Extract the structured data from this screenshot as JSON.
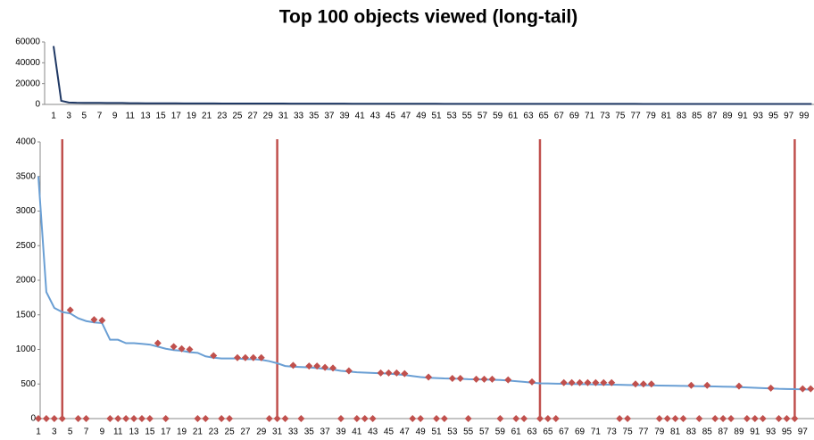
{
  "chart_data": [
    {
      "type": "line",
      "title": "Top 100 objects viewed (long-tail)",
      "categories": [
        "1",
        null,
        "3",
        null,
        "5",
        null,
        "7",
        null,
        "9",
        null,
        "11",
        null,
        "13",
        null,
        "15",
        null,
        "17",
        null,
        "19",
        null,
        "21",
        null,
        "23",
        null,
        "25",
        null,
        "27",
        null,
        "29",
        null,
        "31",
        null,
        "33",
        null,
        "35",
        null,
        "37",
        null,
        "39",
        null,
        "41",
        null,
        "43",
        null,
        "45",
        null,
        "47",
        null,
        "49",
        null,
        "51",
        null,
        "53",
        null,
        "55",
        null,
        "57",
        null,
        "59",
        null,
        "61",
        null,
        "63",
        null,
        "65",
        null,
        "67",
        null,
        "69",
        null,
        "71",
        null,
        "73",
        null,
        "75",
        null,
        "77",
        null,
        "79",
        null,
        "81",
        null,
        "83",
        null,
        "85",
        null,
        "87",
        null,
        "89",
        null,
        "91",
        null,
        "93",
        null,
        "95",
        null,
        "97",
        null,
        "99",
        null
      ],
      "series": [
        {
          "color": "#1f3864",
          "style": "line",
          "values": [
            56000,
            3500,
            1830,
            1600,
            1540,
            1520,
            1450,
            1410,
            1390,
            1380,
            1140,
            1140,
            1090,
            1090,
            1080,
            1070,
            1040,
            1010,
            990,
            980,
            960,
            950,
            900,
            880,
            870,
            870,
            870,
            860,
            860,
            850,
            830,
            800,
            760,
            750,
            745,
            740,
            730,
            720,
            710,
            690,
            680,
            670,
            665,
            660,
            655,
            650,
            640,
            630,
            615,
            600,
            590,
            585,
            580,
            578,
            575,
            570,
            568,
            565,
            562,
            558,
            550,
            540,
            530,
            520,
            510,
            508,
            505,
            503,
            500,
            498,
            496,
            494,
            492,
            490,
            488,
            486,
            484,
            482,
            480,
            478,
            476,
            474,
            472,
            470,
            468,
            466,
            464,
            462,
            460,
            455,
            450,
            445,
            440,
            435,
            430,
            428,
            425,
            422,
            420,
            418
          ]
        }
      ],
      "ylim": [
        0,
        60000
      ],
      "yticks": [
        0,
        20000,
        40000,
        60000
      ]
    },
    {
      "type": "line",
      "categories": [
        "1",
        null,
        "3",
        null,
        "5",
        null,
        "7",
        null,
        "9",
        null,
        "11",
        null,
        "13",
        null,
        "15",
        null,
        "17",
        null,
        "19",
        null,
        "21",
        null,
        "23",
        null,
        "25",
        null,
        "27",
        null,
        "29",
        null,
        "31",
        null,
        "33",
        null,
        "35",
        null,
        "37",
        null,
        "39",
        null,
        "41",
        null,
        "43",
        null,
        "45",
        null,
        "47",
        null,
        "49",
        null,
        "51",
        null,
        "53",
        null,
        "55",
        null,
        "57",
        null,
        "59",
        null,
        "61",
        null,
        "63",
        null,
        "65",
        null,
        "67",
        null,
        "69",
        null,
        "71",
        null,
        "73",
        null,
        "75",
        null,
        "77",
        null,
        "79",
        null,
        "81",
        null,
        "83",
        null,
        "85",
        null,
        "87",
        null,
        "89",
        null,
        "91",
        null,
        "93",
        null,
        "95",
        null,
        "97",
        null
      ],
      "series": [
        {
          "color": "#6a9fd4",
          "style": "line",
          "values": [
            3500,
            1830,
            1600,
            1540,
            1520,
            1450,
            1410,
            1390,
            1380,
            1140,
            1140,
            1090,
            1090,
            1080,
            1070,
            1040,
            1010,
            990,
            980,
            960,
            950,
            900,
            880,
            870,
            870,
            870,
            860,
            860,
            850,
            830,
            800,
            760,
            750,
            745,
            740,
            730,
            720,
            710,
            690,
            680,
            670,
            665,
            660,
            655,
            650,
            640,
            630,
            615,
            600,
            590,
            585,
            580,
            578,
            575,
            570,
            568,
            565,
            562,
            558,
            550,
            540,
            530,
            520,
            510,
            508,
            505,
            503,
            500,
            498,
            496,
            494,
            492,
            490,
            488,
            486,
            484,
            482,
            480,
            478,
            476,
            474,
            472,
            470,
            468,
            466,
            464,
            462,
            460,
            455,
            450,
            445,
            440,
            435,
            430,
            428,
            425,
            422,
            420
          ]
        },
        {
          "color": "#c0504d",
          "style": "marker",
          "values": [
            0,
            0,
            0,
            0,
            1570,
            0,
            0,
            1430,
            1420,
            0,
            0,
            0,
            0,
            0,
            0,
            1090,
            0,
            1040,
            1010,
            1000,
            0,
            0,
            910,
            0,
            0,
            880,
            880,
            880,
            880,
            0,
            0,
            0,
            770,
            0,
            760,
            760,
            740,
            730,
            0,
            690,
            0,
            0,
            0,
            660,
            660,
            660,
            650,
            0,
            0,
            600,
            0,
            0,
            580,
            580,
            0,
            570,
            570,
            570,
            0,
            560,
            0,
            0,
            530,
            0,
            0,
            0,
            520,
            520,
            520,
            520,
            520,
            520,
            520,
            0,
            0,
            500,
            500,
            500,
            0,
            0,
            0,
            0,
            480,
            0,
            480,
            0,
            0,
            0,
            470,
            0,
            0,
            0,
            440,
            0,
            0,
            0,
            430,
            430
          ]
        }
      ],
      "vertical_lines": [
        4,
        31,
        64,
        96
      ],
      "vertical_line_color": "#c0504d",
      "ylim": [
        0,
        4000
      ],
      "yticks": [
        0,
        500,
        1000,
        1500,
        2000,
        2500,
        3000,
        3500,
        4000
      ]
    }
  ]
}
